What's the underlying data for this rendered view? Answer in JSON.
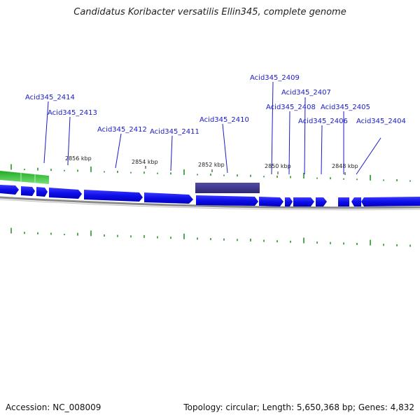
{
  "title": "Candidatus Koribacter versatilis Ellin345, complete genome",
  "footer": {
    "accession": "Accession: NC_008009",
    "summary": "Topology: circular; Length: 5,650,368 bp; Genes: 4,832"
  },
  "scale": {
    "ticks": [
      "2856 kbp",
      "2854 kbp",
      "2852 kbp",
      "2850 kbp",
      "2848 kbp"
    ]
  },
  "genes": [
    {
      "label": "Acid345_2414"
    },
    {
      "label": "Acid345_2413"
    },
    {
      "label": "Acid345_2412"
    },
    {
      "label": "Acid345_2411"
    },
    {
      "label": "Acid345_2410"
    },
    {
      "label": "Acid345_2409"
    },
    {
      "label": "Acid345_2408"
    },
    {
      "label": "Acid345_2407"
    },
    {
      "label": "Acid345_2406"
    },
    {
      "label": "Acid345_2405"
    },
    {
      "label": "Acid345_2404"
    }
  ],
  "colors": {
    "cds": "#1010ee",
    "highlight": "#3c3488",
    "green": "#3cb83c",
    "backbone": "#888888",
    "label": "#1a1ac8",
    "tick": "#1a8a1a"
  }
}
